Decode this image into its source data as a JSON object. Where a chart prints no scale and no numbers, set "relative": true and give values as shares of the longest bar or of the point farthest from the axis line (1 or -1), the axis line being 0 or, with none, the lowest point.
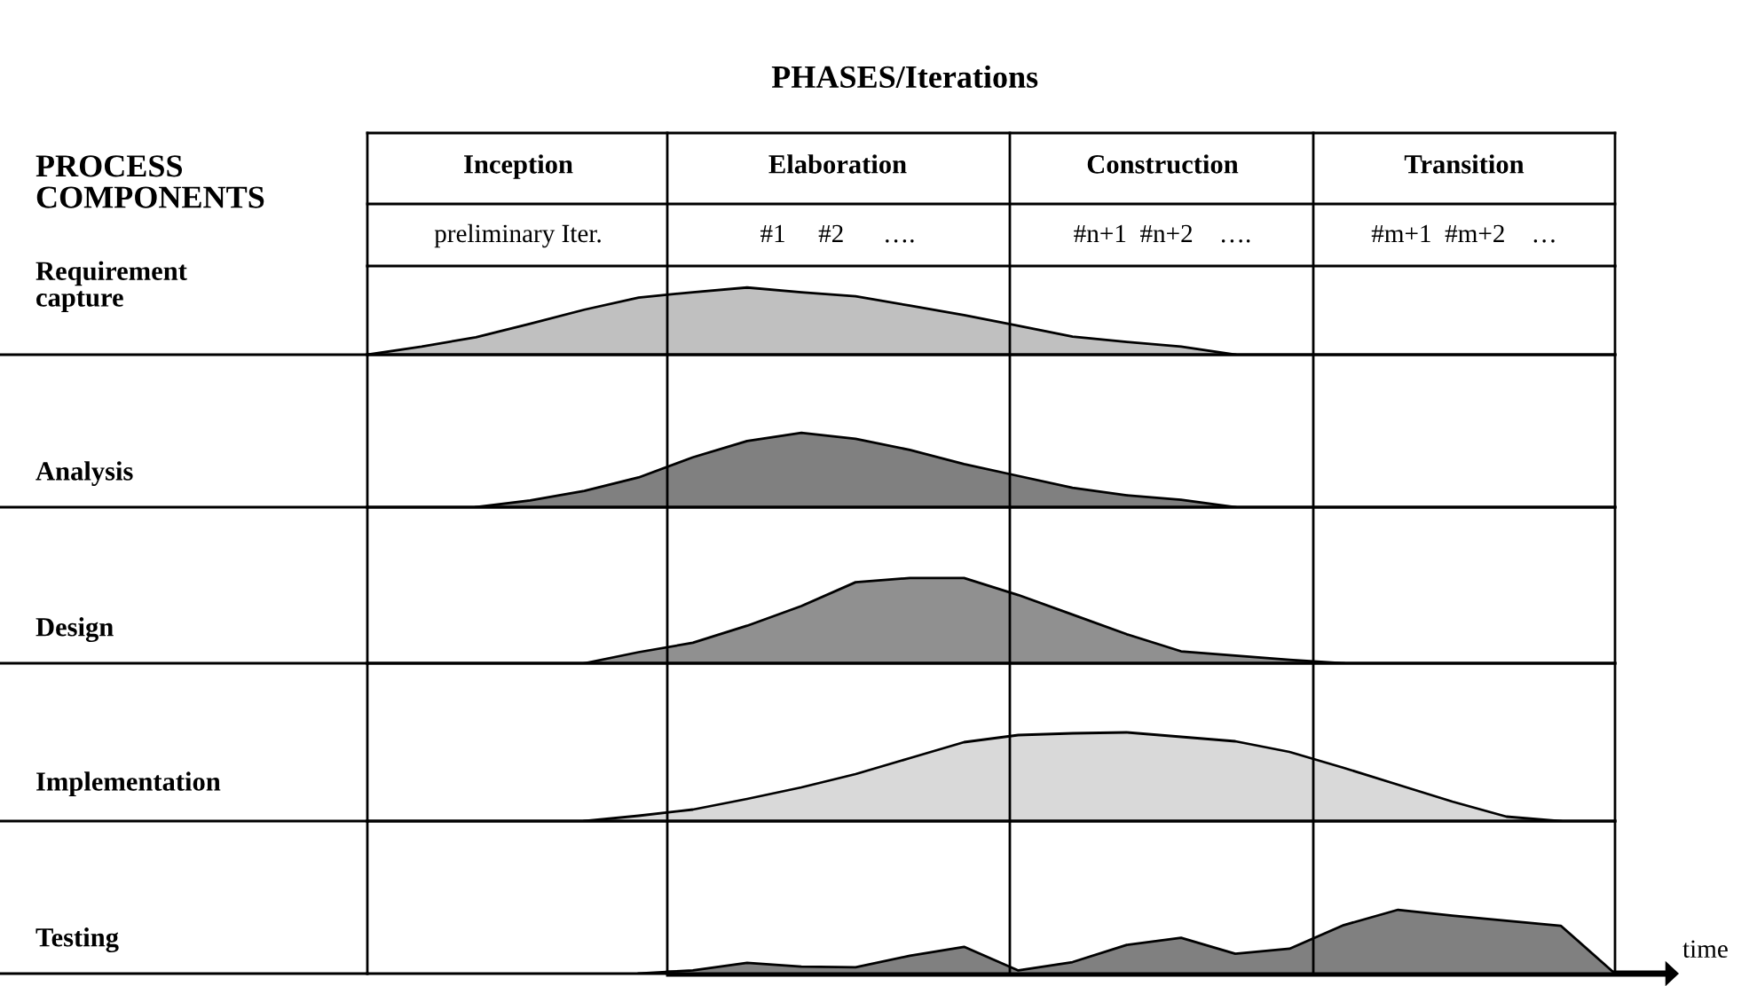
{
  "chart_data": [
    {
      "type": "area",
      "title": "PHASES/Iterations",
      "ylabel": "Requirement\ncapture",
      "relative": true,
      "color": "#c0c0c0",
      "annotations": [
        "PROCESS\nCOMPONENTS",
        "Inception",
        "Elaboration",
        "Construction",
        "Transition",
        "preliminary Iter.",
        "#1     #2      ….",
        "#n+1  #n+2    ….",
        "#m+1  #m+2    …"
      ],
      "categories": [
        null,
        null,
        null,
        null,
        null,
        null,
        null,
        null,
        null,
        null,
        null,
        null,
        null,
        null,
        null,
        null,
        null,
        null,
        null,
        null,
        null,
        null,
        null,
        null
      ],
      "values": [
        0,
        0.12,
        0.26,
        0.46,
        0.67,
        0.85,
        0.93,
        1,
        0.93,
        0.87,
        0.73,
        0.59,
        0.43,
        0.27,
        0.19,
        0.12,
        0,
        null,
        null,
        null,
        null,
        null,
        null,
        null
      ]
    },
    {
      "type": "area",
      "ylabel": "Analysis",
      "relative": true,
      "color": "#808080",
      "categories": [
        null,
        null,
        null,
        null,
        null,
        null,
        null,
        null,
        null,
        null,
        null,
        null,
        null,
        null,
        null,
        null,
        null,
        null,
        null,
        null,
        null,
        null,
        null,
        null
      ],
      "values": [
        null,
        null,
        0,
        0.09,
        0.22,
        0.4,
        0.67,
        0.89,
        1,
        0.92,
        0.77,
        0.58,
        0.42,
        0.26,
        0.16,
        0.1,
        0,
        null,
        null,
        null,
        null,
        null,
        null,
        null
      ]
    },
    {
      "type": "area",
      "ylabel": "Design",
      "relative": true,
      "color": "#909090",
      "categories": [
        null,
        null,
        null,
        null,
        null,
        null,
        null,
        null,
        null,
        null,
        null,
        null,
        null,
        null,
        null,
        null,
        null,
        null,
        null,
        null,
        null,
        null,
        null,
        null
      ],
      "values": [
        null,
        null,
        null,
        null,
        0,
        0.13,
        0.24,
        0.44,
        0.67,
        0.95,
        1,
        1,
        0.8,
        0.57,
        0.34,
        0.14,
        0.09,
        0.04,
        0,
        null,
        null,
        null,
        null,
        null
      ]
    },
    {
      "type": "area",
      "ylabel": "Implementation",
      "relative": true,
      "color": "#d9d9d9",
      "categories": [
        null,
        null,
        null,
        null,
        null,
        null,
        null,
        null,
        null,
        null,
        null,
        null,
        null,
        null,
        null,
        null,
        null,
        null,
        null,
        null,
        null,
        null,
        null,
        null
      ],
      "values": [
        null,
        null,
        null,
        null,
        0,
        0.06,
        0.13,
        0.25,
        0.38,
        0.53,
        0.71,
        0.89,
        0.97,
        0.99,
        1,
        0.95,
        0.9,
        0.78,
        0.6,
        0.41,
        0.22,
        0.05,
        0,
        null
      ]
    },
    {
      "type": "area",
      "ylabel": "Testing",
      "xlabel": "time",
      "relative": true,
      "color": "#808080",
      "categories": [
        null,
        null,
        null,
        null,
        null,
        null,
        null,
        null,
        null,
        null,
        null,
        null,
        null,
        null,
        null,
        null,
        null,
        null,
        null,
        null,
        null,
        null,
        null,
        null
      ],
      "values": [
        null,
        null,
        null,
        null,
        null,
        0,
        0.05,
        0.17,
        0.11,
        0.1,
        0.28,
        0.42,
        0.05,
        0.18,
        0.45,
        0.56,
        0.31,
        0.39,
        0.76,
        1,
        0.91,
        0.83,
        0.75,
        0
      ]
    }
  ]
}
